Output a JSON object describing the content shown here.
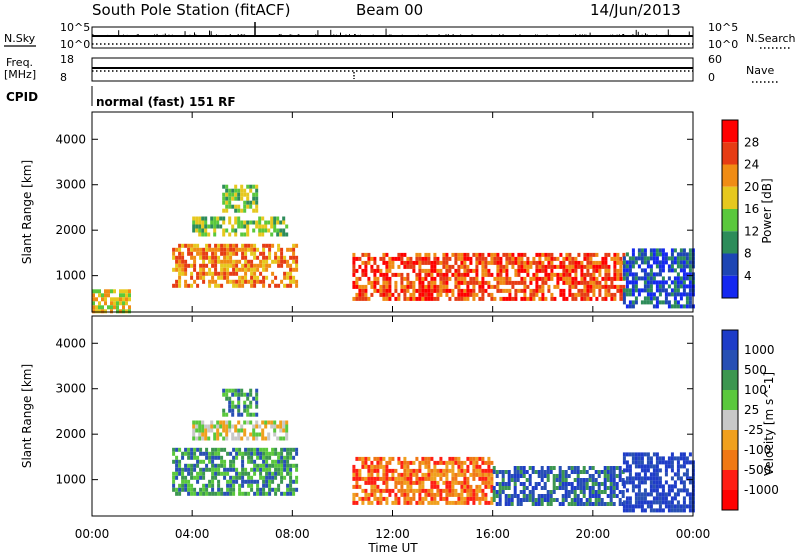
{
  "header": {
    "station": "South Pole Station (fitACF)",
    "beam": "Beam 00",
    "date": "14/Jun/2013"
  },
  "strip_labels": {
    "nsky": "N.Sky",
    "nsearch": "N.Search",
    "freq_line1": "Freq.",
    "freq_line2": "[MHz]",
    "nave": "Nave",
    "cpid": "CPID",
    "mode": "normal (fast) 151 RF",
    "noise_ticks": [
      "10^5",
      "10^0"
    ],
    "freq_ticks": [
      "18",
      "8"
    ],
    "nave_ticks": [
      "60",
      "0"
    ]
  },
  "chart_data": [
    {
      "type": "heatmap",
      "name": "power",
      "ylabel": "Slant Range [km]",
      "xlabel": "Time UT",
      "x_ticks": [
        "00:00",
        "04:00",
        "08:00",
        "12:00",
        "16:00",
        "20:00",
        "00:00"
      ],
      "y_ticks": [
        1000,
        2000,
        3000,
        4000
      ],
      "ylim": [
        200,
        4600
      ],
      "xlim_hours": [
        0,
        24
      ],
      "colorbar": {
        "label": "Power [dB]",
        "ticks": [
          "4",
          "8",
          "12",
          "16",
          "20",
          "24",
          "28"
        ],
        "colors": [
          "#1428f0",
          "#1e46b4",
          "#2d8c5a",
          "#5ac83c",
          "#e6c81e",
          "#f08c14",
          "#e63c14",
          "#ff0000"
        ]
      },
      "regions": [
        {
          "t0": 4.0,
          "t1": 7.8,
          "r0": 1900,
          "r1": 2300,
          "level": 3
        },
        {
          "t0": 3.2,
          "t1": 8.2,
          "r0": 800,
          "r1": 1700,
          "level": 5
        },
        {
          "t0": 5.2,
          "t1": 6.6,
          "r0": 2400,
          "r1": 3000,
          "level": 3
        },
        {
          "t0": 0.0,
          "t1": 1.5,
          "r0": 250,
          "r1": 700,
          "level": 4
        },
        {
          "t0": 10.4,
          "t1": 21.2,
          "r0": 500,
          "r1": 1500,
          "level": 6
        },
        {
          "t0": 21.2,
          "t1": 24.0,
          "r0": 300,
          "r1": 1600,
          "level": 1
        }
      ]
    },
    {
      "type": "heatmap",
      "name": "velocity",
      "ylabel": "Slant Range [km]",
      "xlabel": "Time UT",
      "x_ticks": [
        "00:00",
        "04:00",
        "08:00",
        "12:00",
        "16:00",
        "20:00",
        "00:00"
      ],
      "y_ticks": [
        1000,
        2000,
        3000,
        4000
      ],
      "ylim": [
        200,
        4600
      ],
      "xlim_hours": [
        0,
        24
      ],
      "colorbar": {
        "label": "Velocity [m s^-1]",
        "ticks": [
          "1000",
          "500",
          "100",
          "25",
          "-25",
          "-100",
          "-500",
          "-1000"
        ],
        "colors": [
          "#1e3cc8",
          "#2850b4",
          "#3c9650",
          "#5ac83c",
          "#c8c8c8",
          "#f0a01e",
          "#f07814",
          "#ff1e14",
          "#ff0000"
        ]
      },
      "regions": [
        {
          "t0": 4.0,
          "t1": 7.8,
          "r0": 1900,
          "r1": 2300,
          "level": 4
        },
        {
          "t0": 3.2,
          "t1": 8.2,
          "r0": 700,
          "r1": 1700,
          "level": 2
        },
        {
          "t0": 5.2,
          "t1": 6.6,
          "r0": 2400,
          "r1": 3000,
          "level": 2
        },
        {
          "t0": 10.4,
          "t1": 16.0,
          "r0": 500,
          "r1": 1500,
          "level": 6
        },
        {
          "t0": 16.0,
          "t1": 21.2,
          "r0": 500,
          "r1": 1300,
          "level": 1
        },
        {
          "t0": 21.2,
          "t1": 24.0,
          "r0": 300,
          "r1": 1600,
          "level": 0
        }
      ]
    }
  ]
}
